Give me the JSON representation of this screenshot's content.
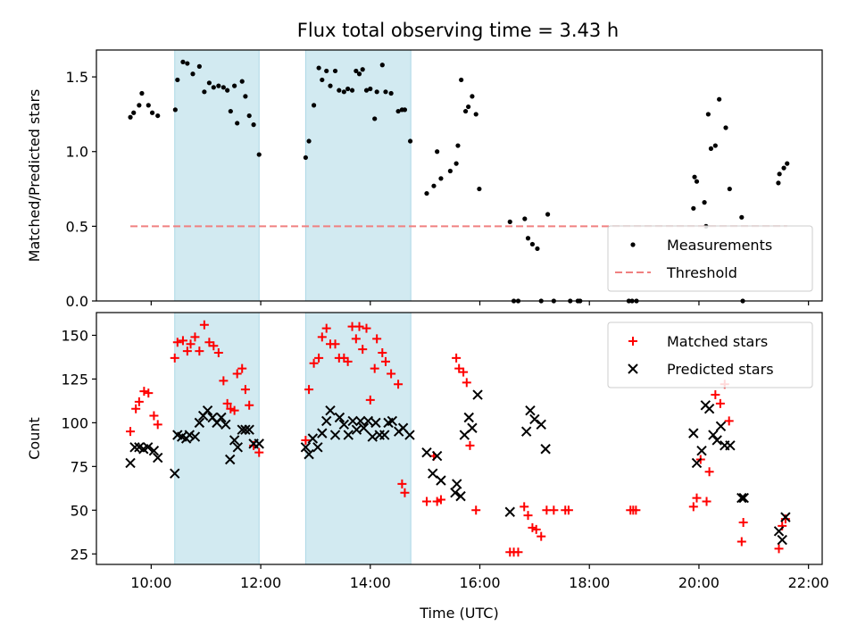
{
  "chart_data": [
    {
      "type": "scatter",
      "title": "Flux total observing time = 3.43 h",
      "xlabel": "",
      "ylabel": "Matched/Predicted stars",
      "xlim": [
        9.0,
        22.25
      ],
      "ylim": [
        0.0,
        1.68
      ],
      "yticks": [
        0.0,
        0.5,
        1.0,
        1.5
      ],
      "ytick_labels": [
        "0.0",
        "0.5",
        "1.0",
        "1.5"
      ],
      "xticks": [
        10,
        12,
        14,
        16,
        18,
        20,
        22
      ],
      "xtick_labels": [],
      "grid": false,
      "legend_position": "lower-right",
      "shaded_intervals": [
        [
          10.43,
          11.97
        ],
        [
          12.82,
          14.74
        ]
      ],
      "shade_color": "#add8e6",
      "series": [
        {
          "name": "Measurements",
          "kind": "scatter",
          "marker": "dot",
          "color": "#000000",
          "x": [
            9.62,
            9.68,
            9.78,
            9.83,
            9.95,
            10.02,
            10.12,
            10.44,
            10.48,
            10.58,
            10.66,
            10.76,
            10.88,
            10.97,
            11.06,
            11.14,
            11.23,
            11.32,
            11.39,
            11.45,
            11.52,
            11.57,
            11.66,
            11.72,
            11.79,
            11.87,
            11.97,
            12.82,
            12.88,
            12.97,
            13.06,
            13.12,
            13.2,
            13.27,
            13.36,
            13.43,
            13.52,
            13.59,
            13.67,
            13.74,
            13.8,
            13.86,
            13.93,
            14.0,
            14.08,
            14.12,
            14.22,
            14.28,
            14.38,
            14.51,
            14.58,
            14.63,
            14.73,
            15.03,
            15.16,
            15.22,
            15.29,
            15.46,
            15.57,
            15.6,
            15.66,
            15.74,
            15.79,
            15.86,
            15.93,
            15.99,
            16.55,
            16.62,
            16.7,
            16.82,
            16.88,
            16.96,
            17.05,
            17.12,
            17.24,
            17.35,
            17.65,
            17.79,
            17.83,
            18.72,
            18.78,
            18.86,
            19.9,
            19.92,
            19.96,
            20.1,
            20.13,
            20.17,
            20.22,
            20.3,
            20.37,
            20.49,
            20.56,
            20.78,
            20.8,
            21.45,
            21.47,
            21.55,
            21.61
          ],
          "y": [
            1.23,
            1.26,
            1.31,
            1.39,
            1.31,
            1.26,
            1.24,
            1.28,
            1.48,
            1.6,
            1.59,
            1.52,
            1.57,
            1.4,
            1.46,
            1.43,
            1.44,
            1.43,
            1.41,
            1.27,
            1.44,
            1.19,
            1.47,
            1.37,
            1.24,
            1.18,
            0.98,
            0.96,
            1.07,
            1.31,
            1.56,
            1.48,
            1.54,
            1.44,
            1.54,
            1.41,
            1.4,
            1.42,
            1.41,
            1.54,
            1.52,
            1.55,
            1.41,
            1.42,
            1.22,
            1.4,
            1.58,
            1.4,
            1.39,
            1.27,
            1.28,
            1.28,
            1.07,
            0.72,
            0.77,
            1.0,
            0.82,
            0.87,
            0.92,
            1.04,
            1.48,
            1.27,
            1.3,
            1.37,
            1.25,
            0.75,
            0.53,
            0.0,
            0.0,
            0.55,
            0.42,
            0.38,
            0.35,
            0.0,
            0.58,
            0.0,
            0.0,
            0.0,
            0.0,
            0.0,
            0.0,
            0.0,
            0.62,
            0.83,
            0.8,
            0.66,
            0.5,
            1.25,
            1.02,
            1.04,
            1.35,
            1.16,
            0.75,
            0.56,
            0.0,
            0.79,
            0.85,
            0.89,
            0.92
          ]
        },
        {
          "name": "Threshold",
          "kind": "line",
          "style": "dashed",
          "color": "#f08080",
          "x": [
            9.62,
            21.61
          ],
          "y": [
            0.5,
            0.5
          ]
        }
      ]
    },
    {
      "type": "scatter",
      "title": "",
      "xlabel": "Time (UTC)",
      "ylabel": "Count",
      "xlim": [
        9.0,
        22.25
      ],
      "ylim": [
        19,
        163
      ],
      "yticks": [
        25,
        50,
        75,
        100,
        125,
        150
      ],
      "ytick_labels": [
        "25",
        "50",
        "75",
        "100",
        "125",
        "150"
      ],
      "xticks": [
        10,
        12,
        14,
        16,
        18,
        20,
        22
      ],
      "xtick_labels": [
        "10:00",
        "12:00",
        "14:00",
        "16:00",
        "18:00",
        "20:00",
        "22:00"
      ],
      "grid": false,
      "legend_position": "upper-right",
      "shaded_intervals": [
        [
          10.43,
          11.97
        ],
        [
          12.82,
          14.74
        ]
      ],
      "shade_color": "#add8e6",
      "series": [
        {
          "name": "Matched stars",
          "kind": "scatter",
          "marker": "plus",
          "color": "#ff0000",
          "x": [
            9.62,
            9.72,
            9.78,
            9.87,
            9.95,
            10.05,
            10.12,
            10.43,
            10.48,
            10.58,
            10.66,
            10.72,
            10.8,
            10.88,
            10.97,
            11.06,
            11.14,
            11.23,
            11.32,
            11.39,
            11.45,
            11.52,
            11.57,
            11.66,
            11.72,
            11.79,
            11.87,
            11.97,
            12.82,
            12.88,
            12.97,
            13.06,
            13.12,
            13.2,
            13.27,
            13.36,
            13.43,
            13.52,
            13.59,
            13.67,
            13.74,
            13.8,
            13.86,
            13.93,
            14.0,
            14.08,
            14.12,
            14.22,
            14.28,
            14.38,
            14.51,
            14.58,
            14.63,
            15.03,
            15.16,
            15.22,
            15.29,
            15.57,
            15.62,
            15.7,
            15.76,
            15.82,
            15.93,
            16.55,
            16.62,
            16.7,
            16.81,
            16.88,
            16.96,
            17.03,
            17.12,
            17.22,
            17.35,
            17.56,
            17.62,
            18.75,
            18.8,
            18.85,
            19.9,
            19.96,
            20.03,
            20.14,
            20.19,
            20.3,
            20.39,
            20.47,
            20.55,
            20.78,
            20.81,
            21.46,
            21.52,
            21.58
          ],
          "y": [
            95,
            108,
            112,
            118,
            117,
            104,
            99,
            137,
            146,
            147,
            141,
            145,
            149,
            141,
            156,
            146,
            144,
            140,
            124,
            111,
            108,
            107,
            128,
            131,
            119,
            110,
            87,
            83,
            90,
            119,
            134,
            137,
            149,
            154,
            145,
            145,
            137,
            137,
            135,
            155,
            148,
            155,
            142,
            154,
            113,
            131,
            148,
            140,
            135,
            128,
            122,
            65,
            60,
            55,
            81,
            55,
            56,
            137,
            131,
            129,
            123,
            87,
            50,
            26,
            26,
            26,
            52,
            47,
            40,
            39,
            35,
            50,
            50,
            50,
            50,
            50,
            50,
            50,
            52,
            57,
            79,
            55,
            72,
            116,
            111,
            122,
            101,
            32,
            43,
            28,
            41,
            45
          ]
        },
        {
          "name": "Predicted stars",
          "kind": "scatter",
          "marker": "x",
          "color": "#000000",
          "x": [
            9.62,
            9.7,
            9.78,
            9.86,
            9.94,
            10.05,
            10.12,
            10.43,
            10.48,
            10.56,
            10.64,
            10.7,
            10.8,
            10.88,
            10.95,
            11.03,
            11.12,
            11.2,
            11.28,
            11.36,
            11.44,
            11.52,
            11.58,
            11.66,
            11.72,
            11.79,
            11.87,
            11.97,
            12.82,
            12.88,
            12.95,
            13.04,
            13.12,
            13.2,
            13.27,
            13.36,
            13.44,
            13.52,
            13.6,
            13.68,
            13.75,
            13.82,
            13.88,
            13.96,
            14.04,
            14.1,
            14.17,
            14.26,
            14.33,
            14.4,
            14.52,
            14.6,
            14.72,
            15.03,
            15.14,
            15.22,
            15.29,
            15.55,
            15.58,
            15.65,
            15.72,
            15.8,
            15.86,
            15.96,
            16.55,
            16.85,
            16.92,
            17.0,
            17.12,
            17.2,
            19.9,
            19.96,
            20.05,
            20.12,
            20.19,
            20.26,
            20.33,
            20.4,
            20.47,
            20.57,
            20.78,
            20.82,
            21.46,
            21.52,
            21.58
          ],
          "y": [
            77,
            86,
            86,
            85,
            86,
            84,
            80,
            71,
            93,
            92,
            91,
            93,
            92,
            100,
            104,
            107,
            103,
            100,
            103,
            99,
            79,
            90,
            86,
            96,
            96,
            96,
            88,
            88,
            86,
            82,
            91,
            86,
            94,
            101,
            107,
            93,
            103,
            99,
            93,
            101,
            96,
            101,
            97,
            101,
            92,
            100,
            93,
            93,
            100,
            101,
            95,
            97,
            93,
            83,
            71,
            81,
            67,
            60,
            65,
            58,
            93,
            103,
            97,
            116,
            49,
            95,
            107,
            102,
            99,
            85,
            94,
            77,
            84,
            110,
            108,
            93,
            90,
            98,
            87,
            87,
            57,
            57,
            38,
            33,
            46
          ]
        }
      ]
    }
  ]
}
